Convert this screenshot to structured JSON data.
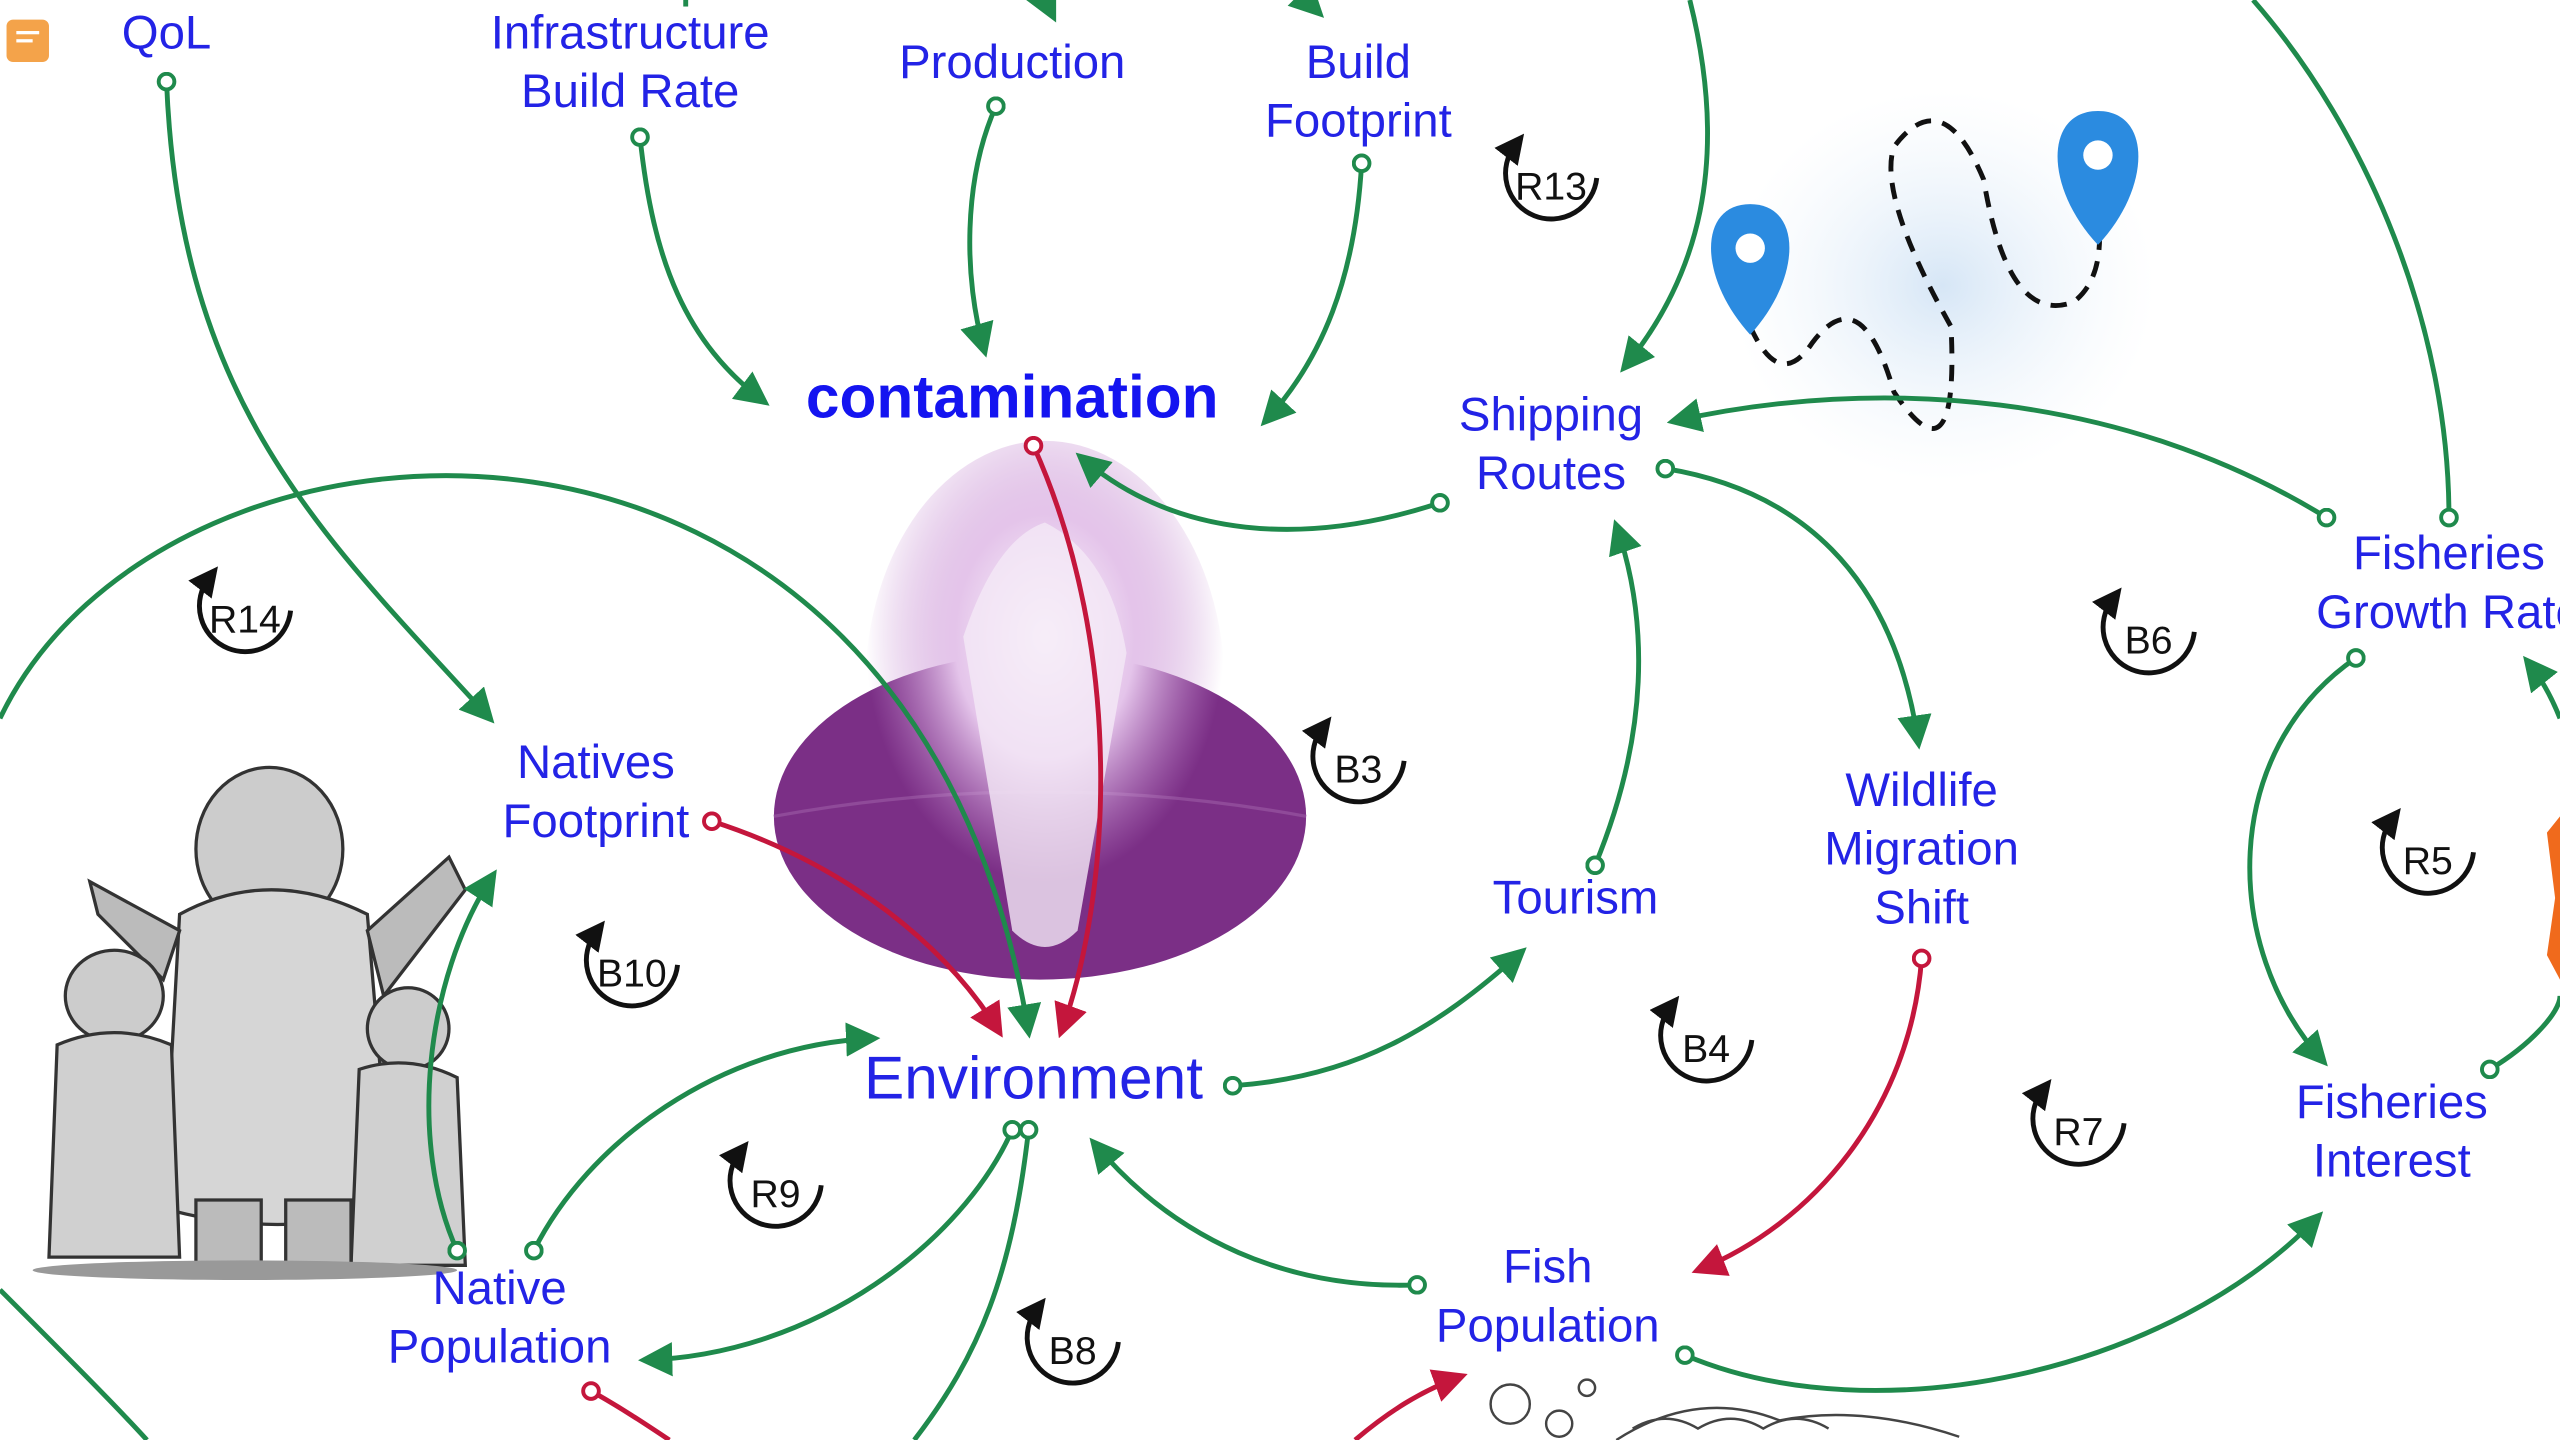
{
  "nodes": [
    {
      "lines": [
        "QoL"
      ]
    },
    {
      "lines": [
        "Infrastructure",
        "Build Rate"
      ]
    },
    {
      "lines": [
        "Production"
      ]
    },
    {
      "lines": [
        "Build",
        "Footprint"
      ]
    },
    {
      "lines": [
        "contamination"
      ]
    },
    {
      "lines": [
        "Shipping",
        "Routes"
      ]
    },
    {
      "lines": [
        "Fisheries",
        "Growth Rate"
      ]
    },
    {
      "lines": [
        "Natives",
        "Footprint"
      ]
    },
    {
      "lines": [
        "Wildlife",
        "Migration",
        "Shift"
      ]
    },
    {
      "lines": [
        "Tourism"
      ]
    },
    {
      "lines": [
        "Environment"
      ]
    },
    {
      "lines": [
        "Native",
        "Population"
      ]
    },
    {
      "lines": [
        "Fish",
        "Population"
      ]
    },
    {
      "lines": [
        "Fisheries",
        "Interest"
      ]
    }
  ],
  "loops": [
    "R13",
    "R14",
    "B3",
    "B10",
    "R9",
    "B8",
    "B6",
    "R5",
    "B4",
    "R7"
  ]
}
